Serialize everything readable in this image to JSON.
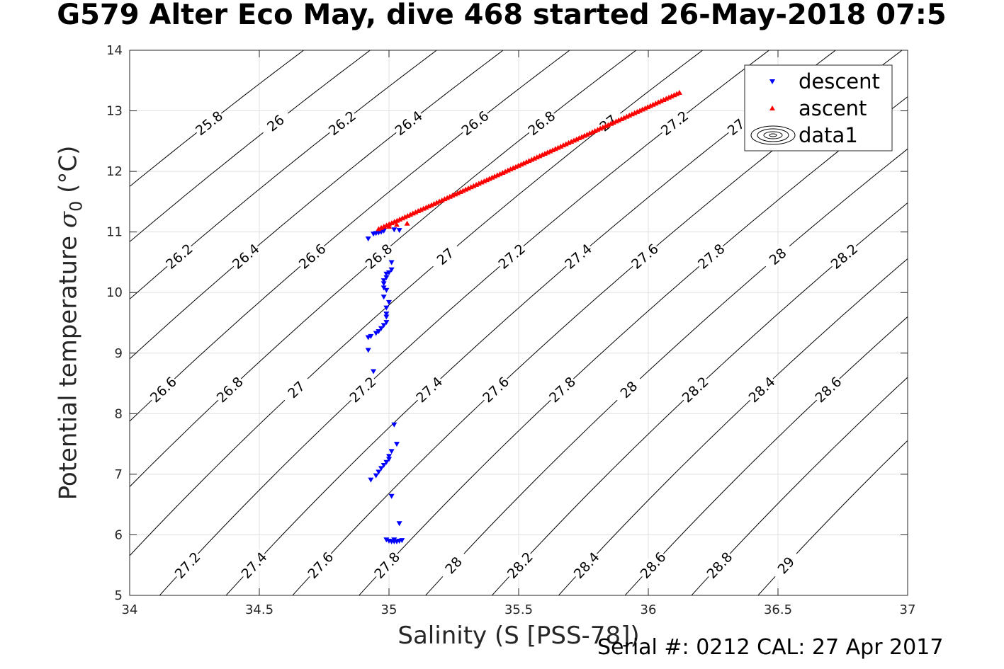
{
  "title": "G579 Alter Eco May, dive 468 started 26-May-2018 07:5",
  "footer": "Serial #: 0212  CAL: 27 Apr 2017",
  "chart_data": {
    "type": "scatter",
    "title": "G579 Alter Eco May, dive 468 started 26-May-2018 07:5",
    "xlabel": "Salinity (S [PSS-78])",
    "ylabel_text": "Potential temperature ",
    "ylabel_symbol": "σ",
    "ylabel_subscript": "0",
    "ylabel_unit": " (°C)",
    "xlim": [
      34,
      37
    ],
    "ylim": [
      5,
      14
    ],
    "xticks": [
      "34",
      "34.5",
      "35",
      "35.5",
      "36",
      "36.5",
      "37"
    ],
    "yticks": [
      "5",
      "6",
      "7",
      "8",
      "9",
      "10",
      "11",
      "12",
      "13",
      "14"
    ],
    "grid": true,
    "legend_position": "top-right",
    "legend": [
      "descent",
      "ascent",
      "data1"
    ],
    "colors": {
      "descent": "#0000ff",
      "ascent": "#ff0000",
      "contour": "#000000",
      "grid": "#e0e0e0"
    },
    "contour_levels": [
      "25.8",
      "26",
      "26.2",
      "26.4",
      "26.6",
      "26.8",
      "27",
      "27.2",
      "27.4",
      "27.6",
      "27.8",
      "28",
      "28.2",
      "28.4",
      "28.6",
      "28.8",
      "29"
    ],
    "series": [
      {
        "name": "descent",
        "marker": "triangle-down",
        "points": [
          [
            34.92,
            10.89
          ],
          [
            34.94,
            10.97
          ],
          [
            34.95,
            10.98
          ],
          [
            34.96,
            10.99
          ],
          [
            34.97,
            11.0
          ],
          [
            34.98,
            11.02
          ],
          [
            35.02,
            11.04
          ],
          [
            35.04,
            11.03
          ],
          [
            35.01,
            10.5
          ],
          [
            35.01,
            10.38
          ],
          [
            35.0,
            10.33
          ],
          [
            34.99,
            10.31
          ],
          [
            34.99,
            10.25
          ],
          [
            34.98,
            10.2
          ],
          [
            34.98,
            10.15
          ],
          [
            34.98,
            10.08
          ],
          [
            34.99,
            10.04
          ],
          [
            34.98,
            9.93
          ],
          [
            35.0,
            9.84
          ],
          [
            34.99,
            9.75
          ],
          [
            34.99,
            9.65
          ],
          [
            34.99,
            9.6
          ],
          [
            34.99,
            9.51
          ],
          [
            34.98,
            9.46
          ],
          [
            34.97,
            9.41
          ],
          [
            34.96,
            9.36
          ],
          [
            34.95,
            9.33
          ],
          [
            34.93,
            9.28
          ],
          [
            34.92,
            9.26
          ],
          [
            34.92,
            9.05
          ],
          [
            34.94,
            8.7
          ],
          [
            35.02,
            7.82
          ],
          [
            35.03,
            7.5
          ],
          [
            35.01,
            7.38
          ],
          [
            35.0,
            7.3
          ],
          [
            35.0,
            7.25
          ],
          [
            34.99,
            7.2
          ],
          [
            34.98,
            7.15
          ],
          [
            34.97,
            7.1
          ],
          [
            34.96,
            7.04
          ],
          [
            34.95,
            6.98
          ],
          [
            34.93,
            6.91
          ],
          [
            35.01,
            6.64
          ],
          [
            35.04,
            6.19
          ],
          [
            34.99,
            5.92
          ],
          [
            35.0,
            5.9
          ],
          [
            35.01,
            5.89
          ],
          [
            35.02,
            5.89
          ],
          [
            35.03,
            5.89
          ],
          [
            35.04,
            5.9
          ],
          [
            35.05,
            5.91
          ],
          [
            35.02,
            5.92
          ]
        ]
      },
      {
        "name": "ascent",
        "marker": "triangle-up",
        "start": [
          34.96,
          11.05
        ],
        "end": [
          36.12,
          13.3
        ],
        "count": 115,
        "shallow_points": [
          [
            35.0,
            11.09
          ],
          [
            35.03,
            11.12
          ],
          [
            35.07,
            11.14
          ]
        ]
      },
      {
        "name": "data1",
        "marker": "contour"
      }
    ]
  }
}
